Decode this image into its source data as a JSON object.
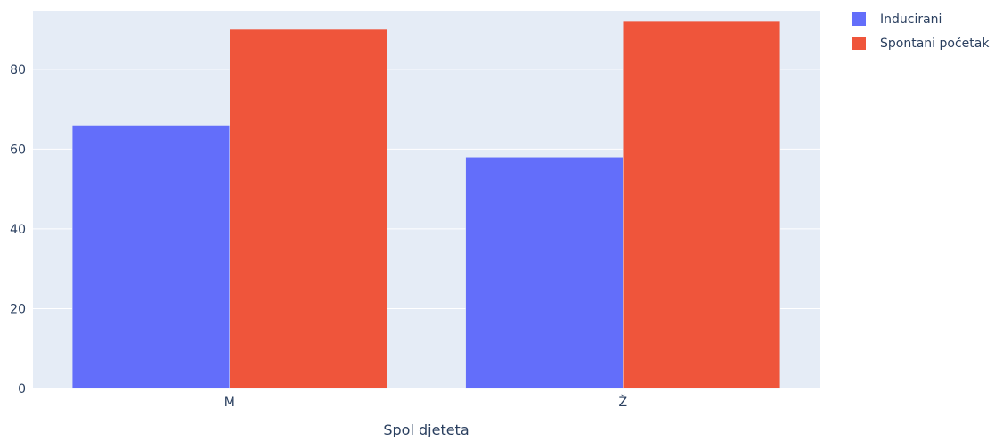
{
  "chart_data": {
    "type": "bar",
    "title": "",
    "xlabel": "Spol djeteta",
    "ylabel": "",
    "categories": [
      "M",
      "Ž"
    ],
    "series": [
      {
        "name": "Inducirani",
        "values": [
          66,
          58
        ],
        "color": "#636efa"
      },
      {
        "name": "Spontani početak",
        "values": [
          90,
          92
        ],
        "color": "#ef553b"
      }
    ],
    "ylim": [
      0,
      94.7
    ],
    "yticks": [
      0,
      20,
      40,
      60,
      80
    ],
    "grid": true,
    "legend_position": "top-right",
    "plot_background": "#e5ecf6"
  }
}
